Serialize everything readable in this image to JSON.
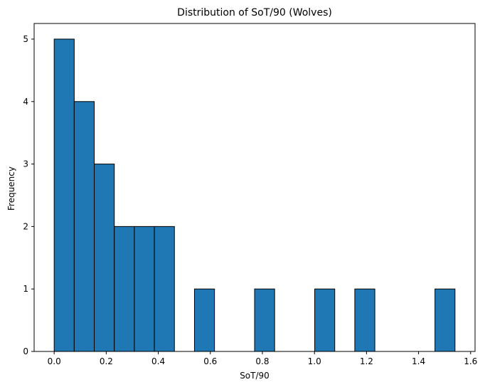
{
  "chart_data": {
    "type": "bar",
    "title": "Distribution of SoT/90 (Wolves)",
    "xlabel": "SoT/90",
    "ylabel": "Frequency",
    "xlim": [
      -0.077,
      1.617
    ],
    "ylim": [
      0,
      5.25
    ],
    "x_ticks": [
      "0.0",
      "0.2",
      "0.4",
      "0.6",
      "0.8",
      "1.0",
      "1.2",
      "1.4",
      "1.6"
    ],
    "x_tick_values": [
      0.0,
      0.2,
      0.4,
      0.6,
      0.8,
      1.0,
      1.2,
      1.4,
      1.6
    ],
    "y_ticks": [
      "0",
      "1",
      "2",
      "3",
      "4",
      "5"
    ],
    "y_tick_values": [
      0,
      1,
      2,
      3,
      4,
      5
    ],
    "bin_edges": [
      0.0,
      0.077,
      0.154,
      0.231,
      0.308,
      0.385,
      0.462,
      0.539,
      0.616,
      0.693,
      0.77,
      0.847,
      0.924,
      1.001,
      1.078,
      1.155,
      1.232,
      1.309,
      1.386,
      1.463,
      1.54
    ],
    "values": [
      5,
      4,
      3,
      2,
      2,
      2,
      0,
      1,
      0,
      0,
      1,
      0,
      0,
      1,
      0,
      1,
      0,
      0,
      0,
      1
    ],
    "bar_color": "#1f77b4",
    "edge_color": "#000000",
    "grid": false,
    "legend": "none"
  }
}
